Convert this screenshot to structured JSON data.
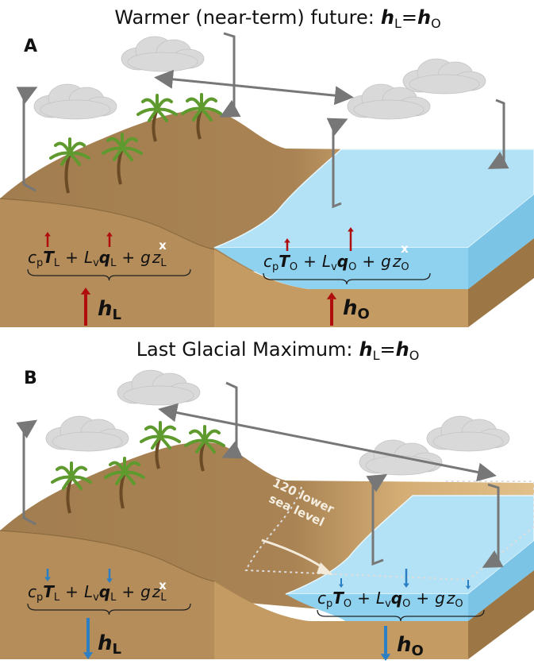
{
  "panels": [
    {
      "label": "A",
      "title": "Warmer (near-term) future:",
      "title_equation": [
        "h",
        "L",
        "=",
        "h",
        "O"
      ],
      "land_equation": [
        "c",
        "p",
        "T",
        "L",
        "+",
        "L",
        "v",
        "q",
        "L",
        "+",
        "g",
        "z",
        "L"
      ],
      "ocean_equation": [
        "c",
        "p",
        "T",
        "O",
        "+",
        "L",
        "v",
        "q",
        "O",
        "+",
        "g",
        "z",
        "O"
      ],
      "land_total": [
        "h",
        "L"
      ],
      "ocean_total": [
        "h",
        "O"
      ],
      "no_change_marks": [
        "x",
        "x"
      ]
    },
    {
      "label": "B",
      "title": "Last Glacial Maximum:",
      "title_equation": [
        "h",
        "L",
        "=",
        "h",
        "O"
      ],
      "land_equation": [
        "c",
        "p",
        "T",
        "L",
        "+",
        "L",
        "v",
        "q",
        "L",
        "+",
        "g",
        "z",
        "L"
      ],
      "ocean_equation": [
        "c",
        "p",
        "T",
        "O",
        "+",
        "L",
        "v",
        "q",
        "O",
        "+",
        "g",
        "z",
        "O"
      ],
      "land_total": [
        "h",
        "L"
      ],
      "ocean_total": [
        "h",
        "O"
      ],
      "no_change_marks": [
        "x"
      ],
      "sea_level_note": [
        "120 lower",
        "sea level"
      ]
    }
  ]
}
